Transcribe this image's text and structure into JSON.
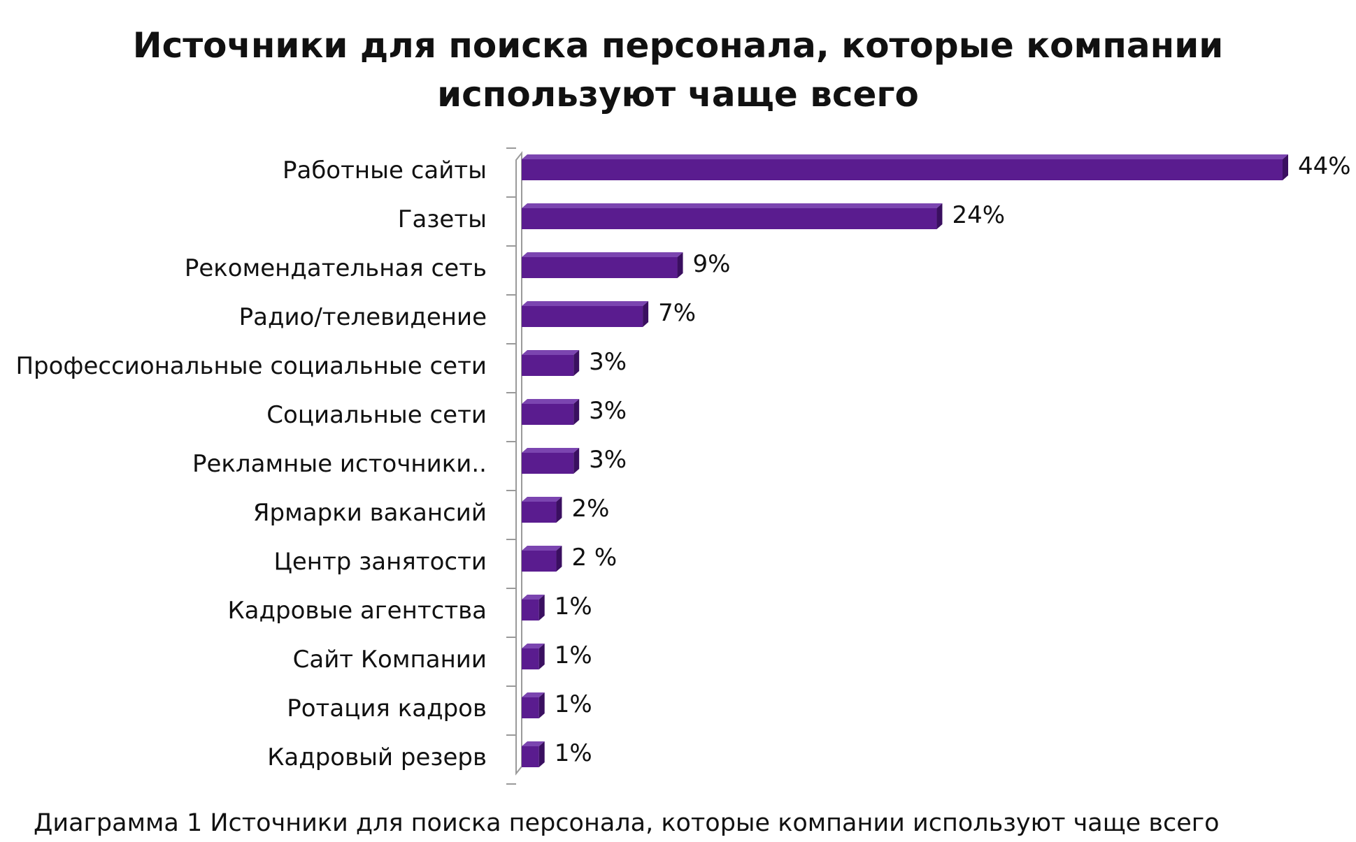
{
  "chart_data": {
    "type": "bar",
    "orientation": "horizontal",
    "title_lines": [
      "Источники для поиска персонала, которые  компании",
      "используют чаще всего"
    ],
    "categories": [
      "Работные сайты",
      "Газеты",
      "Рекомендательная сеть",
      "Радио/телевидение",
      "Профессиональные социальные сети",
      "Социальные сети",
      "Рекламные источники..",
      "Ярмарки вакансий",
      "Центр занятости",
      "Кадровые агентства",
      "Сайт Компании",
      "Ротация кадров",
      "Кадровый резерв"
    ],
    "values": [
      44,
      24,
      9,
      7,
      3,
      3,
      3,
      2,
      2,
      1,
      1,
      1,
      1
    ],
    "data_labels": [
      "44%",
      "24%",
      "9%",
      "7%",
      "3%",
      "3%",
      "3%",
      "2%",
      "2 %",
      "1%",
      "1%",
      "1%",
      "1%"
    ],
    "xlim": [
      0,
      44
    ],
    "grid": false,
    "legend": "none",
    "bar_color": "#5a1c8f",
    "bar_top_color": "#7b45b0",
    "bar_side_color": "#3a0f60"
  },
  "caption": "Диаграмма 1 Источники для поиска персонала, которые  компании используют чаще всего"
}
